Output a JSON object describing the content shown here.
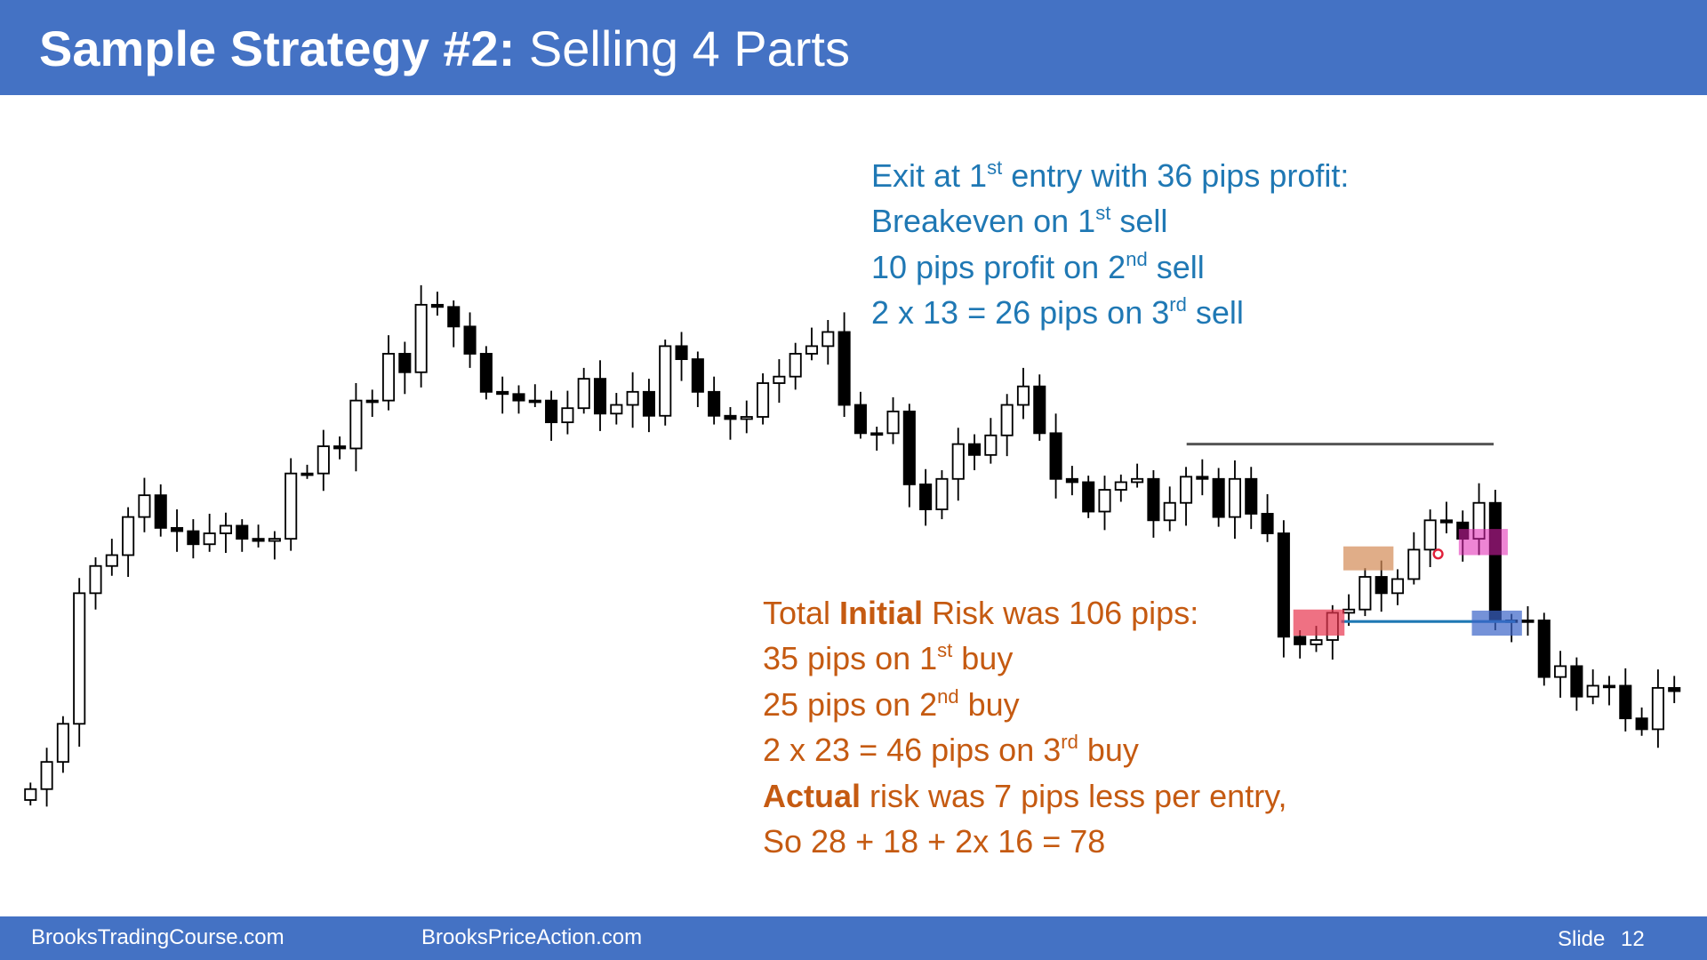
{
  "header": {
    "title_bold": "Sample Strategy #2:",
    "title_rest": " Selling 4 Parts"
  },
  "exit_notes": [
    [
      "Exit at 1",
      "st",
      " entry with 36 pips profit:"
    ],
    [
      "Breakeven on 1",
      "st",
      " sell"
    ],
    [
      "10 pips profit on 2",
      "nd",
      " sell"
    ],
    [
      "2 x 13 = 26 pips on 3",
      "rd",
      " sell"
    ]
  ],
  "risk_notes": {
    "line1": [
      "Total ",
      "Initial",
      " Risk was 106 pips:"
    ],
    "line2": [
      "35 pips on 1",
      "st",
      " buy"
    ],
    "line3": [
      "25 pips on 2",
      "nd",
      " buy"
    ],
    "line4": [
      "2 x 23 = 46 pips on 3",
      "rd",
      " buy"
    ],
    "line5": [
      "Actual",
      " risk was 7 pips less per entry,"
    ],
    "line6": "So 28 + 18 + 2x 16 = 78"
  },
  "footer": {
    "left": "BrooksTradingCourse.com",
    "middle": "BrooksPriceAction.com",
    "slide_label": "Slide",
    "slide_number": "12"
  }
}
